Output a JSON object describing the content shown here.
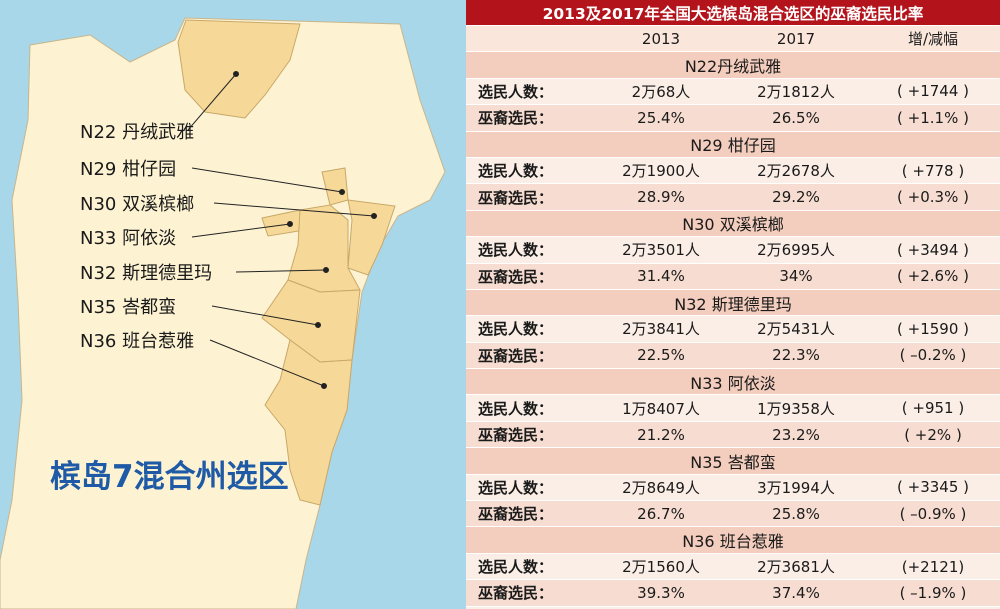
{
  "map": {
    "title": "槟岛7混合州选区",
    "labels": [
      "N22 丹绒武雅",
      "N29 柑仔园",
      "N30 双溪槟榔",
      "N33 阿依淡",
      "N32 斯理德里玛",
      "N35 峇都蛮",
      "N36 班台惹雅"
    ]
  },
  "table": {
    "title": "2013及2017年全国大选槟岛混合选区的巫裔选民比率",
    "columns": [
      "2013",
      "2017",
      "增/减幅"
    ],
    "sections": [
      {
        "name": "N22丹绒武雅",
        "rows": [
          [
            "选民人数：",
            "2万68人",
            "2万1812人",
            "( +1744 )"
          ],
          [
            "巫裔选民：",
            "25.4%",
            "26.5%",
            "( +1.1% )"
          ]
        ]
      },
      {
        "name": "N29 柑仔园",
        "rows": [
          [
            "选民人数：",
            "2万1900人",
            "2万2678人",
            "( +778 )"
          ],
          [
            "巫裔选民：",
            "28.9%",
            "29.2%",
            "( +0.3% )"
          ]
        ]
      },
      {
        "name": "N30 双溪槟榔",
        "rows": [
          [
            "选民人数：",
            "2万3501人",
            "2万6995人",
            "( +3494 )"
          ],
          [
            "巫裔选民：",
            "31.4%",
            "34%",
            "( +2.6% )"
          ]
        ]
      },
      {
        "name": "N32 斯理德里玛",
        "rows": [
          [
            "选民人数：",
            "2万3841人",
            "2万5431人",
            "( +1590 )"
          ],
          [
            "巫裔选民：",
            "22.5%",
            "22.3%",
            "( –0.2% )"
          ]
        ]
      },
      {
        "name": "N33 阿依淡",
        "rows": [
          [
            "选民人数：",
            "1万8407人",
            "1万9358人",
            "( +951 )"
          ],
          [
            "巫裔选民：",
            "21.2%",
            "23.2%",
            "( +2% )"
          ]
        ]
      },
      {
        "name": "N35 峇都蛮",
        "rows": [
          [
            "选民人数：",
            "2万8649人",
            "3万1994人",
            "( +3345 )"
          ],
          [
            "巫裔选民：",
            "26.7%",
            "25.8%",
            "( –0.9% )"
          ]
        ]
      },
      {
        "name": "N36 班台惹雅",
        "rows": [
          [
            "选民人数：",
            "2万1560人",
            "2万3681人",
            "(+2121)"
          ],
          [
            "巫裔选民：",
            "39.3%",
            "37.4%",
            "( –1.9% )"
          ]
        ]
      }
    ]
  }
}
